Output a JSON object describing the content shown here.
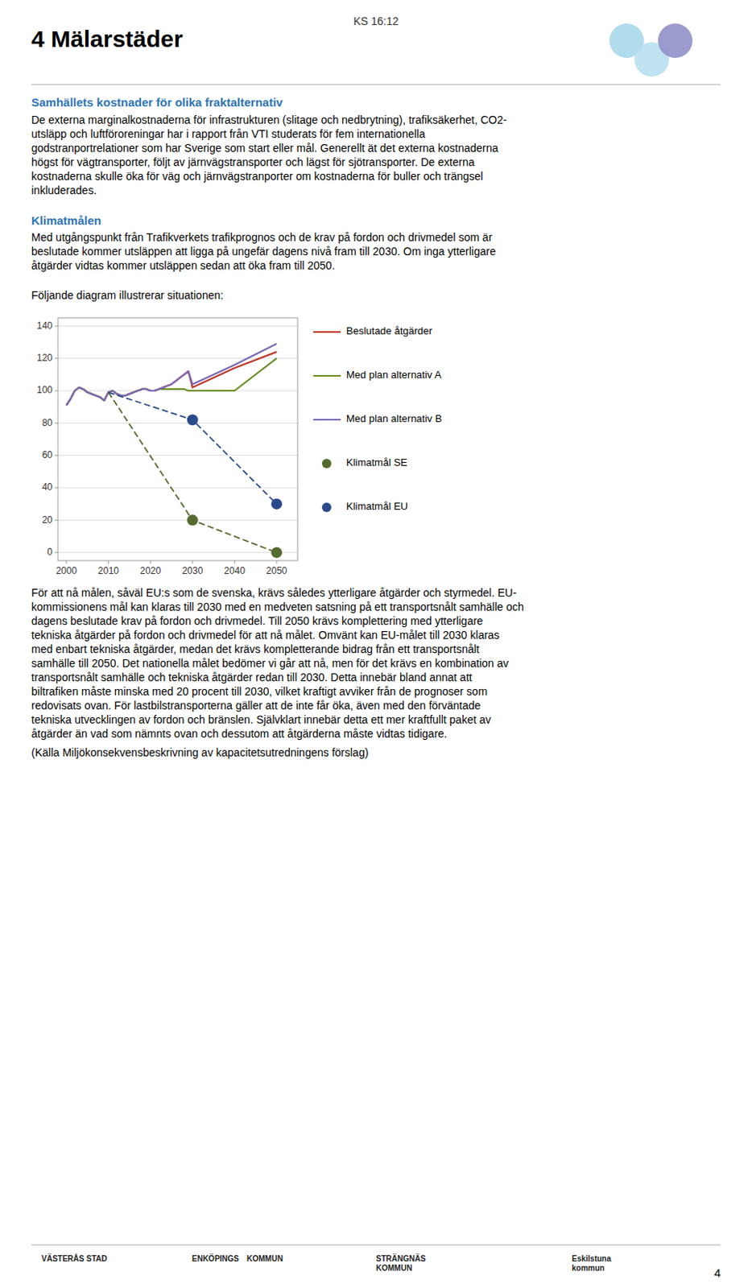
{
  "header_text": "KS 16:12",
  "title": "4 Mälarstäder",
  "heading_color": "#2e74b5",
  "text_color": "#000000",
  "section1_heading": "Samhällets kostnader för olika fraktalternativ",
  "section1_text_lines": [
    "De externa marginalkostnaderna för infrastrukturen (slitage och nedbrytning), trafiksäkerhet, CO2-",
    "utsläpp och luftföroreningar har i rapport från VTI studerats för fem internationella",
    "godstranportrelationer som har Sverige som start eller mål. Generellt ät det externa kostnaderna",
    "högst för vägtransporter, följt av järnvägstransporter och lägst för sjötransporter. De externa",
    "kostnaderna skulle öka för väg och järnvägstranporter om kostnaderna för buller och trängsel",
    "inkluderades."
  ],
  "section2_heading": "Klimatmålen",
  "section2_text_lines": [
    "Med utgångspunkt från Trafikverkets trafikprognos och de krav på fordon och drivmedel som är",
    "beslutade kommer utsläppen att ligga på ungefär dagens nivå fram till 2030. Om inga ytterligare",
    "åtgärder vidtas kommer utsläppen sedan att öka fram till 2050."
  ],
  "intro_diagram": "Följande diagram illustrerar situationen:",
  "chart_data": {
    "type": "line",
    "xlim": [
      1998,
      2055
    ],
    "ylim": [
      -5,
      145
    ],
    "xticks": [
      2000,
      2010,
      2020,
      2030,
      2040,
      2050
    ],
    "yticks": [
      0,
      20,
      40,
      60,
      80,
      100,
      120,
      140
    ],
    "grid": true,
    "legend": "right",
    "series": [
      {
        "name": "Beslutade åtgärder",
        "type": "line",
        "color": "#c0392b",
        "x": [
          2000,
          2001,
          2002,
          2003,
          2004,
          2005,
          2006,
          2007,
          2008,
          2009,
          2010,
          2011,
          2012,
          2013,
          2014,
          2015,
          2016,
          2017,
          2018,
          2019,
          2020,
          2021,
          2022,
          2023,
          2024,
          2025,
          2026,
          2027,
          2028,
          2029,
          2030,
          2040,
          2050
        ],
        "values": [
          91,
          95,
          100,
          102,
          101,
          99,
          98,
          97,
          96,
          94,
          99,
          100,
          98,
          97,
          97,
          98,
          99,
          100,
          101,
          101,
          100,
          100,
          101,
          102,
          103,
          104,
          106,
          108,
          110,
          112,
          102,
          114,
          124
        ]
      },
      {
        "name": "Med plan alternativ A",
        "type": "line",
        "color": "#6b8e23",
        "x": [
          2000,
          2001,
          2002,
          2003,
          2004,
          2005,
          2006,
          2007,
          2008,
          2009,
          2010,
          2011,
          2012,
          2013,
          2014,
          2015,
          2016,
          2017,
          2018,
          2019,
          2020,
          2021,
          2022,
          2023,
          2024,
          2025,
          2026,
          2027,
          2028,
          2029,
          2030,
          2040,
          2050
        ],
        "values": [
          91,
          95,
          100,
          102,
          101,
          99,
          98,
          97,
          96,
          94,
          99,
          100,
          98,
          97,
          97,
          98,
          99,
          100,
          101,
          101,
          100,
          100,
          101,
          101,
          101,
          101,
          101,
          101,
          101,
          100,
          100,
          100,
          120
        ]
      },
      {
        "name": "Med plan alternativ B",
        "type": "line",
        "color": "#7b68b5",
        "x": [
          2000,
          2001,
          2002,
          2003,
          2004,
          2005,
          2006,
          2007,
          2008,
          2009,
          2010,
          2011,
          2012,
          2013,
          2014,
          2015,
          2016,
          2017,
          2018,
          2019,
          2020,
          2021,
          2022,
          2023,
          2024,
          2025,
          2026,
          2027,
          2028,
          2029,
          2030,
          2040,
          2050
        ],
        "values": [
          91,
          95,
          100,
          102,
          101,
          99,
          98,
          97,
          96,
          94,
          99,
          100,
          98,
          97,
          97,
          98,
          99,
          100,
          101,
          101,
          100,
          100,
          101,
          102,
          103,
          104,
          106,
          108,
          110,
          112,
          104,
          116,
          129
        ]
      },
      {
        "type": "line",
        "line_style": "dashed",
        "color": "#556b2f",
        "x": [
          2010,
          2030,
          2050
        ],
        "values": [
          99,
          20,
          0
        ]
      },
      {
        "type": "line",
        "line_style": "dashed",
        "color": "#2b4a8b",
        "x": [
          2010,
          2030,
          2050
        ],
        "values": [
          99,
          82,
          30
        ]
      },
      {
        "name": "Klimatmål SE",
        "type": "scatter",
        "marker": "circle",
        "color": "#556b2f",
        "x": [
          2030,
          2050
        ],
        "values": [
          20,
          0
        ]
      },
      {
        "name": "Klimatmål EU",
        "type": "scatter",
        "marker": "circle",
        "color": "#2b4a8b",
        "x": [
          2030,
          2050
        ],
        "values": [
          82,
          30
        ]
      }
    ]
  },
  "body_text_lines": [
    "För att nå målen, såväl EU:s som de svenska, krävs således ytterligare åtgärder och styrmedel. EU-",
    "kommissionens mål kan klaras till 2030 med en medveten satsning på ett transportsnålt samhälle och",
    "dagens beslutade krav på fordon och drivmedel. Till 2050 krävs komplettering med ytterligare",
    "tekniska åtgärder på fordon och drivmedel för att nå målet. Omvänt kan EU-målet till 2030 klaras",
    "med enbart tekniska åtgärder, medan det krävs kompletterande bidrag från ett transportsnålt",
    "samhälle till 2050. Det nationella målet bedömer vi går att nå, men för det krävs en kombination av",
    "transportsnålt samhälle och tekniska åtgärder redan till 2030. Detta innebär bland annat att",
    "biltrafiken måste minska med 20 procent till 2030, vilket kraftigt avviker från de prognoser som",
    "redovisats ovan. För lastbilstransporterna gäller att de inte får öka, även med den förväntade",
    "tekniska utvecklingen av fordon och bränslen. Självklart innebär detta ett mer kraftfullt paket av",
    "åtgärder än vad som nämnts ovan och dessutom att åtgärderna måste vidtas tidigare."
  ],
  "source_text": "(Källa Miljökonsekvensbeskrivning av kapacitetsutredningens förslag)",
  "page_number": "4",
  "footer_cities": [
    "VÄSTERÅS STAD",
    "ENKÖPINGS KOMMUN",
    "STRÄNGNÄS\nKOMMUN",
    "Eskilstuna\nkommun"
  ]
}
